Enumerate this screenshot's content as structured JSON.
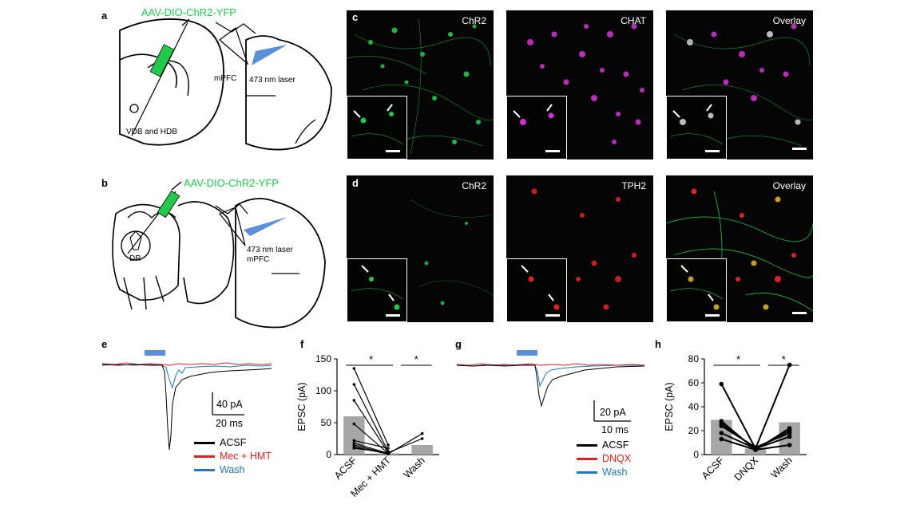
{
  "panels": {
    "a": {
      "label": "a",
      "virus": "AAV-DIO-ChR2-YFP",
      "region": "VDB and HDB",
      "target": "mPFC",
      "laser": "473 nm laser"
    },
    "b": {
      "label": "b",
      "virus": "AAV-DIO-ChR2-YFP",
      "region": "DR",
      "target": "mPFC",
      "laser": "473 nm laser"
    },
    "c": {
      "label": "c",
      "images": [
        "ChR2",
        "CHAT",
        "Overlay"
      ]
    },
    "d": {
      "label": "d",
      "images": [
        "ChR2",
        "TPH2",
        "Overlay"
      ]
    },
    "e": {
      "label": "e",
      "scale_y": "40 pA",
      "scale_x": "20 ms",
      "legend": [
        {
          "name": "ACSF",
          "color": "#000000"
        },
        {
          "name": "Mec + HMT",
          "color": "#e02020"
        },
        {
          "name": "Wash",
          "color": "#1f77c4"
        }
      ]
    },
    "f": {
      "label": "f",
      "sig1": "*",
      "sig2": "*"
    },
    "g": {
      "label": "g",
      "scale_y": "20 pA",
      "scale_x": "10 ms",
      "legend": [
        {
          "name": "ACSF",
          "color": "#000000"
        },
        {
          "name": "DNQX",
          "color": "#e02020"
        },
        {
          "name": "Wash",
          "color": "#1f77c4"
        }
      ]
    },
    "h": {
      "label": "h",
      "sig1": "*",
      "sig2": "*"
    }
  },
  "colors": {
    "chr2": "#22c84a",
    "chat": "#cc33cc",
    "tph2": "#dd2222",
    "laser": "#5b8fd6"
  },
  "chart_data": [
    {
      "panel": "f",
      "type": "bar",
      "categories": [
        "ACSF",
        "Mec + HMT",
        "Wash"
      ],
      "values": [
        60,
        2,
        15
      ],
      "ylabel": "EPSC (pA)",
      "ylim": [
        0,
        150
      ],
      "yticks": [
        0,
        50,
        100,
        150
      ],
      "pairs": [
        [
          135,
          15,
          null
        ],
        [
          110,
          5,
          null
        ],
        [
          85,
          3,
          null
        ],
        [
          48,
          2,
          null
        ],
        [
          22,
          10,
          null
        ],
        [
          18,
          2,
          null
        ],
        [
          15,
          1,
          null
        ],
        [
          12,
          1,
          33
        ],
        [
          10,
          3,
          25
        ]
      ]
    },
    {
      "panel": "h",
      "type": "bar",
      "categories": [
        "ACSF",
        "DNQX",
        "Wash"
      ],
      "values": [
        29,
        5,
        27
      ],
      "ylabel": "EPSC (pA)",
      "ylim": [
        0,
        80
      ],
      "yticks": [
        0,
        20,
        40,
        60,
        80
      ],
      "pairs": [
        [
          59,
          5,
          75
        ],
        [
          28,
          4,
          22
        ],
        [
          26,
          5,
          20
        ],
        [
          24,
          6,
          18
        ],
        [
          18,
          5,
          15
        ],
        [
          13,
          4,
          8
        ]
      ]
    }
  ]
}
